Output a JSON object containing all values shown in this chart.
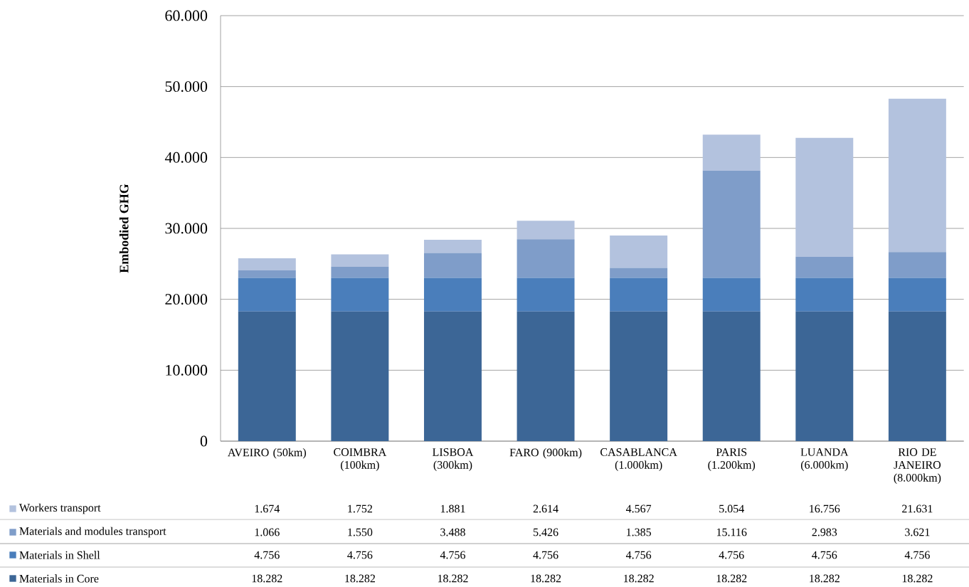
{
  "chart_data": {
    "type": "bar",
    "stacked": true,
    "ylabel": "Embodied GHG",
    "categories": [
      "AVEIRO (50km)",
      "COIMBRA (100km)",
      "LISBOA (300km)",
      "FARO (900km)",
      "CASABLANCA (1.000km)",
      "PARIS (1.200km)",
      "LUANDA (6.000km)",
      "RIO DE JANEIRO (8.000km)"
    ],
    "series": [
      {
        "name": "Materials in Core",
        "color": "#3c6696",
        "values": [
          18282,
          18282,
          18282,
          18282,
          18282,
          18282,
          18282,
          18282
        ],
        "value_labels": [
          "18.282",
          "18.282",
          "18.282",
          "18.282",
          "18.282",
          "18.282",
          "18.282",
          "18.282"
        ]
      },
      {
        "name": "Materials in Shell",
        "color": "#4a7ebb",
        "values": [
          4756,
          4756,
          4756,
          4756,
          4756,
          4756,
          4756,
          4756
        ],
        "value_labels": [
          "4.756",
          "4.756",
          "4.756",
          "4.756",
          "4.756",
          "4.756",
          "4.756",
          "4.756"
        ]
      },
      {
        "name": "Materials and modules transport",
        "color": "#7f9dc9",
        "values": [
          1066,
          1550,
          3488,
          5426,
          1385,
          15116,
          2983,
          3621
        ],
        "value_labels": [
          "1.066",
          "1.550",
          "3.488",
          "5.426",
          "1.385",
          "15.116",
          "2.983",
          "3.621"
        ]
      },
      {
        "name": "Workers transport",
        "color": "#b3c2de",
        "values": [
          1674,
          1752,
          1881,
          2614,
          4567,
          5054,
          16756,
          21631
        ],
        "value_labels": [
          "1.674",
          "1.752",
          "1.881",
          "2.614",
          "4.567",
          "5.054",
          "16.756",
          "21.631"
        ]
      }
    ],
    "ylim": [
      0,
      60000
    ],
    "yticks": [
      0,
      {
        "value": 10000,
        "label": "10.000"
      },
      {
        "value": 20000,
        "label": "20.000"
      },
      {
        "value": 30000,
        "label": "30.000"
      },
      {
        "value": 40000,
        "label": "40.000"
      },
      {
        "value": 50000,
        "label": "50.000"
      },
      {
        "value": 60000,
        "label": "60.000"
      }
    ],
    "grid": "y",
    "legend": "bottom"
  }
}
